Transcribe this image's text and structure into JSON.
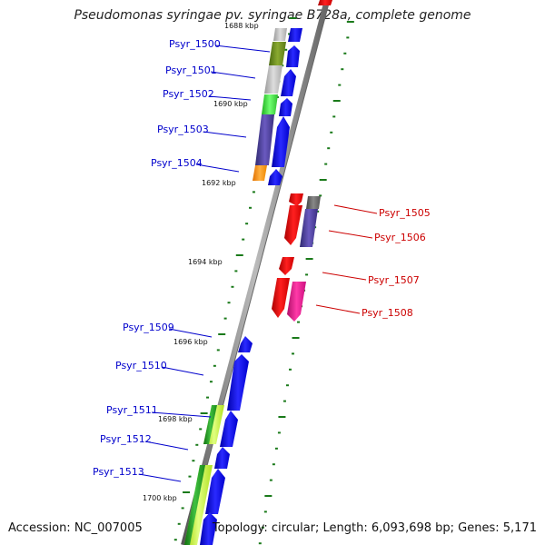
{
  "title": "Pseudomonas syringae pv. syringae B728a, complete genome",
  "footer": {
    "accession": "Accession: NC_007005",
    "topology": "Topology: circular; Length: 6,093,698 bp; Genes: 5,171"
  },
  "colors": {
    "forward_label": "#0000cc",
    "reverse_label": "#cc0000",
    "backbone": "#888888",
    "ticks": "#1a7a1a",
    "blue_gene": "#0000ee",
    "red_gene": "#ee0000",
    "magenta_gene": "#ee1493"
  },
  "scale_labels": [
    "1688 kbp",
    "1690 kbp",
    "1692 kbp",
    "1694 kbp",
    "1696 kbp",
    "1698 kbp",
    "1700 kbp"
  ],
  "forward_gene_labels": [
    "Psyr_1500",
    "Psyr_1501",
    "Psyr_1502",
    "Psyr_1503",
    "Psyr_1504",
    "Psyr_1509",
    "Psyr_1510",
    "Psyr_1511",
    "Psyr_1512",
    "Psyr_1513"
  ],
  "reverse_gene_labels": [
    "Psyr_1505",
    "Psyr_1506",
    "Psyr_1507",
    "Psyr_1508"
  ]
}
